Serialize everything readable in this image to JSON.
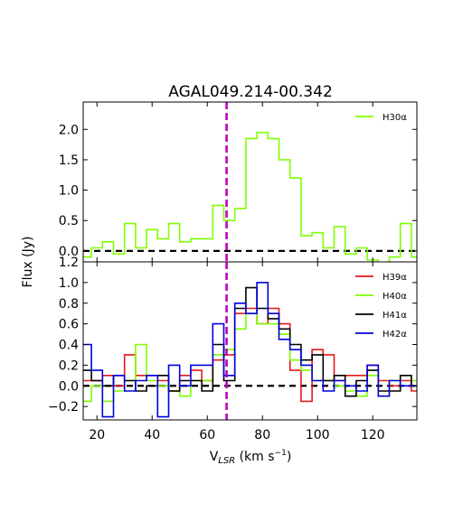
{
  "chart_data": {
    "type": "line",
    "title": "AGAL049.214-00.342",
    "xlabel": "V_LSR (km s^-1)",
    "xlabel_main": "V",
    "xlabel_sub": "LSR",
    "xlabel_units": " (km s",
    "xlabel_sup": "−1",
    "xlabel_close": ")",
    "ylabel": "Flux (Jy)",
    "xlim": [
      15,
      136
    ],
    "x_ticks": [
      "20",
      "40",
      "60",
      "80",
      "100",
      "120"
    ],
    "x_tick_values": [
      20,
      40,
      60,
      80,
      100,
      120
    ],
    "vline_x": 67,
    "vline_color": "#bf00bf",
    "step_width": 4,
    "panels": [
      {
        "ylim": [
          -0.18,
          2.45
        ],
        "y_ticks": [
          "0.0",
          "0.5",
          "1.0",
          "1.5",
          "2.0"
        ],
        "y_tick_values": [
          0.0,
          0.5,
          1.0,
          1.5,
          2.0
        ],
        "series": [
          {
            "name": "H30α",
            "color": "#7fff00",
            "x": [
              16,
              20,
              24,
              28,
              32,
              36,
              40,
              44,
              48,
              52,
              56,
              60,
              64,
              68,
              72,
              76,
              80,
              84,
              88,
              92,
              96,
              100,
              104,
              108,
              112,
              116,
              120,
              124,
              128,
              132,
              136
            ],
            "y": [
              -0.1,
              0.05,
              0.15,
              -0.05,
              0.45,
              0.05,
              0.35,
              0.2,
              0.45,
              0.15,
              0.2,
              0.2,
              0.75,
              0.5,
              0.7,
              1.85,
              1.95,
              1.85,
              1.5,
              1.2,
              0.25,
              0.3,
              0.05,
              0.4,
              -0.05,
              0.05,
              -0.15,
              -0.2,
              -0.1,
              0.45,
              -0.1
            ]
          }
        ]
      },
      {
        "ylim": [
          -0.33,
          1.2
        ],
        "y_ticks": [
          "−0.2",
          "0.0",
          "0.2",
          "0.4",
          "0.6",
          "0.8",
          "1.0",
          "1.2"
        ],
        "y_tick_values": [
          -0.2,
          0.0,
          0.2,
          0.4,
          0.6,
          0.8,
          1.0,
          1.2
        ],
        "series": [
          {
            "name": "H39α",
            "color": "#e31a1c",
            "x": [
              16,
              20,
              24,
              28,
              32,
              36,
              40,
              44,
              48,
              52,
              56,
              60,
              64,
              68,
              72,
              76,
              80,
              84,
              88,
              92,
              96,
              100,
              104,
              108,
              112,
              116,
              120,
              124,
              128,
              132,
              136
            ],
            "y": [
              0.05,
              0.05,
              0.1,
              0.0,
              0.3,
              0.1,
              0.1,
              0.05,
              -0.05,
              0.1,
              0.15,
              0.05,
              0.25,
              0.3,
              0.7,
              0.75,
              0.6,
              0.75,
              0.6,
              0.15,
              -0.15,
              0.35,
              0.3,
              0.05,
              0.1,
              0.1,
              0.2,
              0.05,
              0.0,
              0.05,
              -0.05
            ]
          },
          {
            "name": "H40α",
            "color": "#7fff00",
            "x": [
              16,
              20,
              24,
              28,
              32,
              36,
              40,
              44,
              48,
              52,
              56,
              60,
              64,
              68,
              72,
              76,
              80,
              84,
              88,
              92,
              96,
              100,
              104,
              108,
              112,
              116,
              120,
              124,
              128,
              132,
              136
            ],
            "y": [
              -0.15,
              0.0,
              -0.15,
              -0.05,
              0.05,
              0.4,
              0.05,
              0.0,
              -0.05,
              -0.1,
              0.05,
              0.05,
              0.3,
              0.35,
              0.55,
              0.7,
              0.6,
              0.6,
              0.5,
              0.25,
              0.15,
              0.05,
              0.05,
              0.0,
              -0.05,
              -0.1,
              0.1,
              -0.1,
              0.05,
              0.1,
              0.05
            ]
          },
          {
            "name": "H41α",
            "color": "#000000",
            "x": [
              16,
              20,
              24,
              28,
              32,
              36,
              40,
              44,
              48,
              52,
              56,
              60,
              64,
              68,
              72,
              76,
              80,
              84,
              88,
              92,
              96,
              100,
              104,
              108,
              112,
              116,
              120,
              124,
              128,
              132,
              136
            ],
            "y": [
              0.15,
              0.05,
              0.0,
              0.1,
              0.05,
              -0.05,
              0.0,
              0.1,
              -0.05,
              0.05,
              0.05,
              -0.05,
              0.4,
              0.05,
              0.75,
              0.95,
              0.75,
              0.65,
              0.55,
              0.4,
              0.25,
              0.3,
              0.05,
              0.1,
              -0.1,
              0.05,
              0.15,
              -0.05,
              -0.05,
              0.1,
              0.0
            ]
          },
          {
            "name": "H42α",
            "color": "#0000e0",
            "x": [
              16,
              20,
              24,
              28,
              32,
              36,
              40,
              44,
              48,
              52,
              56,
              60,
              64,
              68,
              72,
              76,
              80,
              84,
              88,
              92,
              96,
              100,
              104,
              108,
              112,
              116,
              120,
              124,
              128,
              132,
              136
            ],
            "y": [
              0.4,
              0.15,
              -0.3,
              0.1,
              -0.05,
              0.05,
              0.1,
              -0.3,
              0.2,
              0.0,
              0.2,
              0.2,
              0.6,
              0.1,
              0.8,
              0.7,
              1.0,
              0.7,
              0.45,
              0.35,
              0.2,
              0.05,
              -0.05,
              0.05,
              0.0,
              -0.05,
              0.2,
              -0.1,
              0.05,
              0.0,
              0.0
            ]
          }
        ]
      }
    ]
  }
}
